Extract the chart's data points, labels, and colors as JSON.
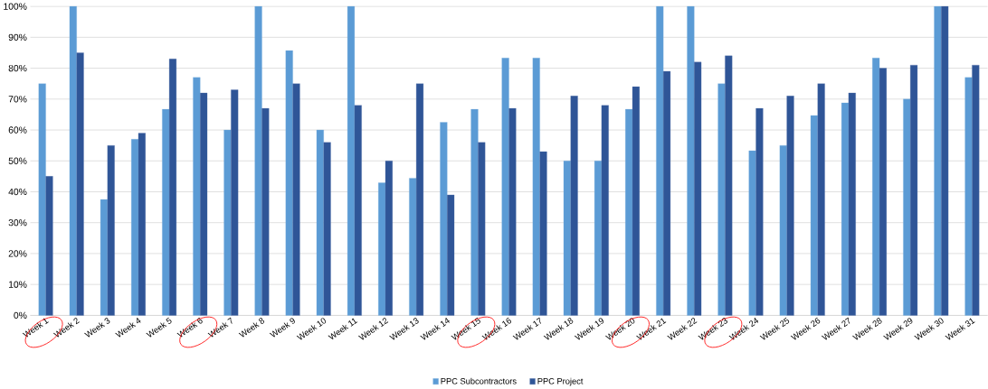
{
  "chart_data": {
    "type": "bar",
    "categories": [
      "Week 1",
      "Week 2",
      "Week 3",
      "Week 4",
      "Week 5",
      "Week 6",
      "Week 7",
      "Week 8",
      "Week 9",
      "Week 10",
      "Week 11",
      "Week 12",
      "Week 13",
      "Week 14",
      "Week 15",
      "Week 16",
      "Week 17",
      "Week 18",
      "Week 19",
      "Week 20",
      "Week 21",
      "Week 22",
      "Week 23",
      "Week 24",
      "Week 25",
      "Week 26",
      "Week 27",
      "Week 28",
      "Week 29",
      "Week 30",
      "Week 31"
    ],
    "series": [
      {
        "name": "PPC Subcontractors",
        "color": "#5b9bd5",
        "values": [
          75,
          100,
          37.5,
          57,
          66.7,
          77,
          60,
          100,
          85.7,
          60,
          100,
          42.9,
          44.4,
          62.5,
          66.7,
          83.3,
          83.3,
          50,
          50,
          66.7,
          100,
          100,
          75,
          53.3,
          55,
          64.7,
          68.8,
          83.3,
          70,
          100,
          77
        ]
      },
      {
        "name": "PPC Project",
        "color": "#2f5597",
        "values": [
          45,
          85,
          55,
          59,
          83,
          72,
          73,
          67,
          75,
          56,
          68,
          50,
          75,
          39,
          56,
          67,
          53,
          71,
          68,
          74,
          79,
          82,
          84,
          67,
          71,
          75,
          72,
          80,
          81,
          100,
          81
        ]
      }
    ],
    "ylim": [
      0,
      100
    ],
    "yticks": [
      {
        "value": 0,
        "label": "0%"
      },
      {
        "value": 10,
        "label": "10%"
      },
      {
        "value": 20,
        "label": "20%"
      },
      {
        "value": 30,
        "label": "30%"
      },
      {
        "value": 40,
        "label": "40%"
      },
      {
        "value": 50,
        "label": "50%"
      },
      {
        "value": 60,
        "label": "60%"
      },
      {
        "value": 70,
        "label": "70%"
      },
      {
        "value": 80,
        "label": "80%"
      },
      {
        "value": 90,
        "label": "90%"
      },
      {
        "value": 100,
        "label": "100%"
      }
    ],
    "grid": "y",
    "legend": "bottom"
  }
}
